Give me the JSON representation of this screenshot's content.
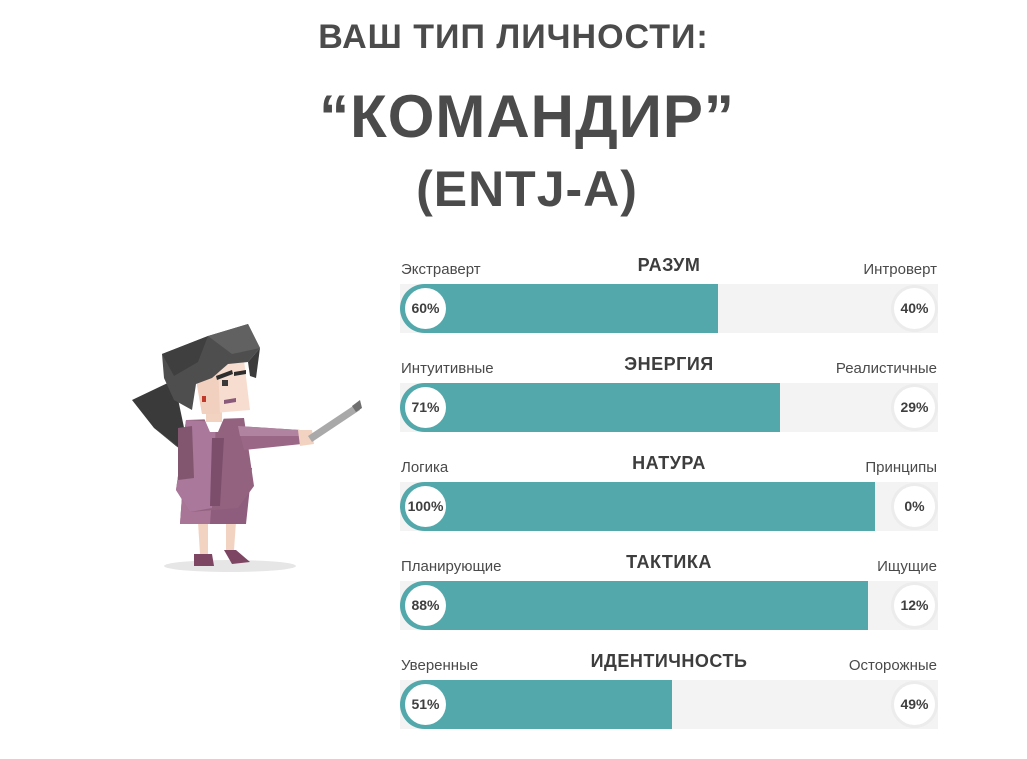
{
  "header": {
    "label": "ВАШ ТИП ЛИЧНОСТИ:",
    "name": "“КОМАНДИР”",
    "code": "(ENTJ-A)"
  },
  "colors": {
    "accent": "#52a8aa",
    "track": "#f3f3f3",
    "text": "#4b4b4b",
    "jacket": "#8a5a7a"
  },
  "illustration": "commander-woman-pointer-icon",
  "traits": [
    {
      "title": "РАЗУМ",
      "left_label": "Экстраверт",
      "right_label": "Интроверт",
      "left_pct": "60%",
      "right_pct": "40%",
      "value": 60
    },
    {
      "title": "ЭНЕРГИЯ",
      "left_label": "Интуитивные",
      "right_label": "Реалистичные",
      "left_pct": "71%",
      "right_pct": "29%",
      "value": 71
    },
    {
      "title": "НАТУРА",
      "left_label": "Логика",
      "right_label": "Принципы",
      "left_pct": "100%",
      "right_pct": "0%",
      "value": 100
    },
    {
      "title": "ТАКТИКА",
      "left_label": "Планирующие",
      "right_label": "Ищущие",
      "left_pct": "88%",
      "right_pct": "12%",
      "value": 88
    },
    {
      "title": "ИДЕНТИЧНОСТЬ",
      "left_label": "Уверенные",
      "right_label": "Осторожные",
      "left_pct": "51%",
      "right_pct": "49%",
      "value": 51
    }
  ]
}
